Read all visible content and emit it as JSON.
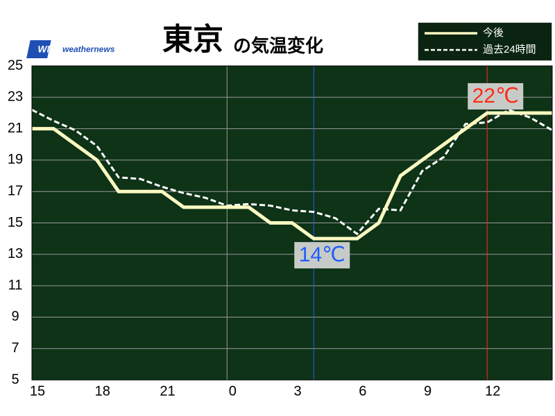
{
  "chart_data": {
    "type": "line",
    "title_main": "東京",
    "title_sub": "の気温変化",
    "logo_mark": "WN",
    "logo_text": "weathernews",
    "x": [
      0,
      1,
      2,
      3,
      4,
      5,
      6,
      7,
      8,
      9,
      10,
      11,
      12,
      13,
      14,
      15,
      16,
      17,
      18,
      19,
      20,
      21,
      22,
      23,
      24
    ],
    "series": [
      {
        "name": "今後",
        "color": "#fbf8c2",
        "style": "solid",
        "values": [
          21,
          21,
          20,
          19,
          17,
          17,
          17,
          16,
          16,
          16,
          16,
          15,
          15,
          14,
          14,
          14,
          15,
          18,
          19,
          20,
          21,
          22,
          22,
          22,
          22
        ]
      },
      {
        "name": "過去24時間",
        "color": "#ffffff",
        "style": "dashed",
        "values": [
          22.2,
          21.5,
          20.9,
          19.9,
          17.9,
          17.8,
          17.3,
          16.9,
          16.6,
          16.1,
          16.2,
          16.1,
          15.8,
          15.7,
          15.3,
          14.3,
          15.9,
          15.8,
          18.3,
          19.2,
          21.3,
          21.4,
          22.2,
          21.7,
          20.9
        ]
      }
    ],
    "xlim": [
      0,
      24
    ],
    "xticks": [
      {
        "value": 0,
        "label": "15"
      },
      {
        "value": 3,
        "label": "18"
      },
      {
        "value": 6,
        "label": "21"
      },
      {
        "value": 9,
        "label": "0"
      },
      {
        "value": 12,
        "label": "3"
      },
      {
        "value": 15,
        "label": "6"
      },
      {
        "value": 18,
        "label": "9"
      },
      {
        "value": 21,
        "label": "12"
      }
    ],
    "ylim": [
      5,
      25
    ],
    "yticks": [
      5,
      7,
      9,
      11,
      13,
      15,
      17,
      19,
      21,
      23,
      25
    ],
    "day_boundary": 9,
    "grid": true,
    "background": "#0e3317",
    "annotations": [
      {
        "x": 13,
        "y": 14,
        "text": "14℃",
        "color": "#1f5cff",
        "position": "below"
      },
      {
        "x": 21,
        "y": 22,
        "text": "22℃",
        "color": "#ff2a1a",
        "position": "above"
      }
    ],
    "legend": "top-right"
  }
}
